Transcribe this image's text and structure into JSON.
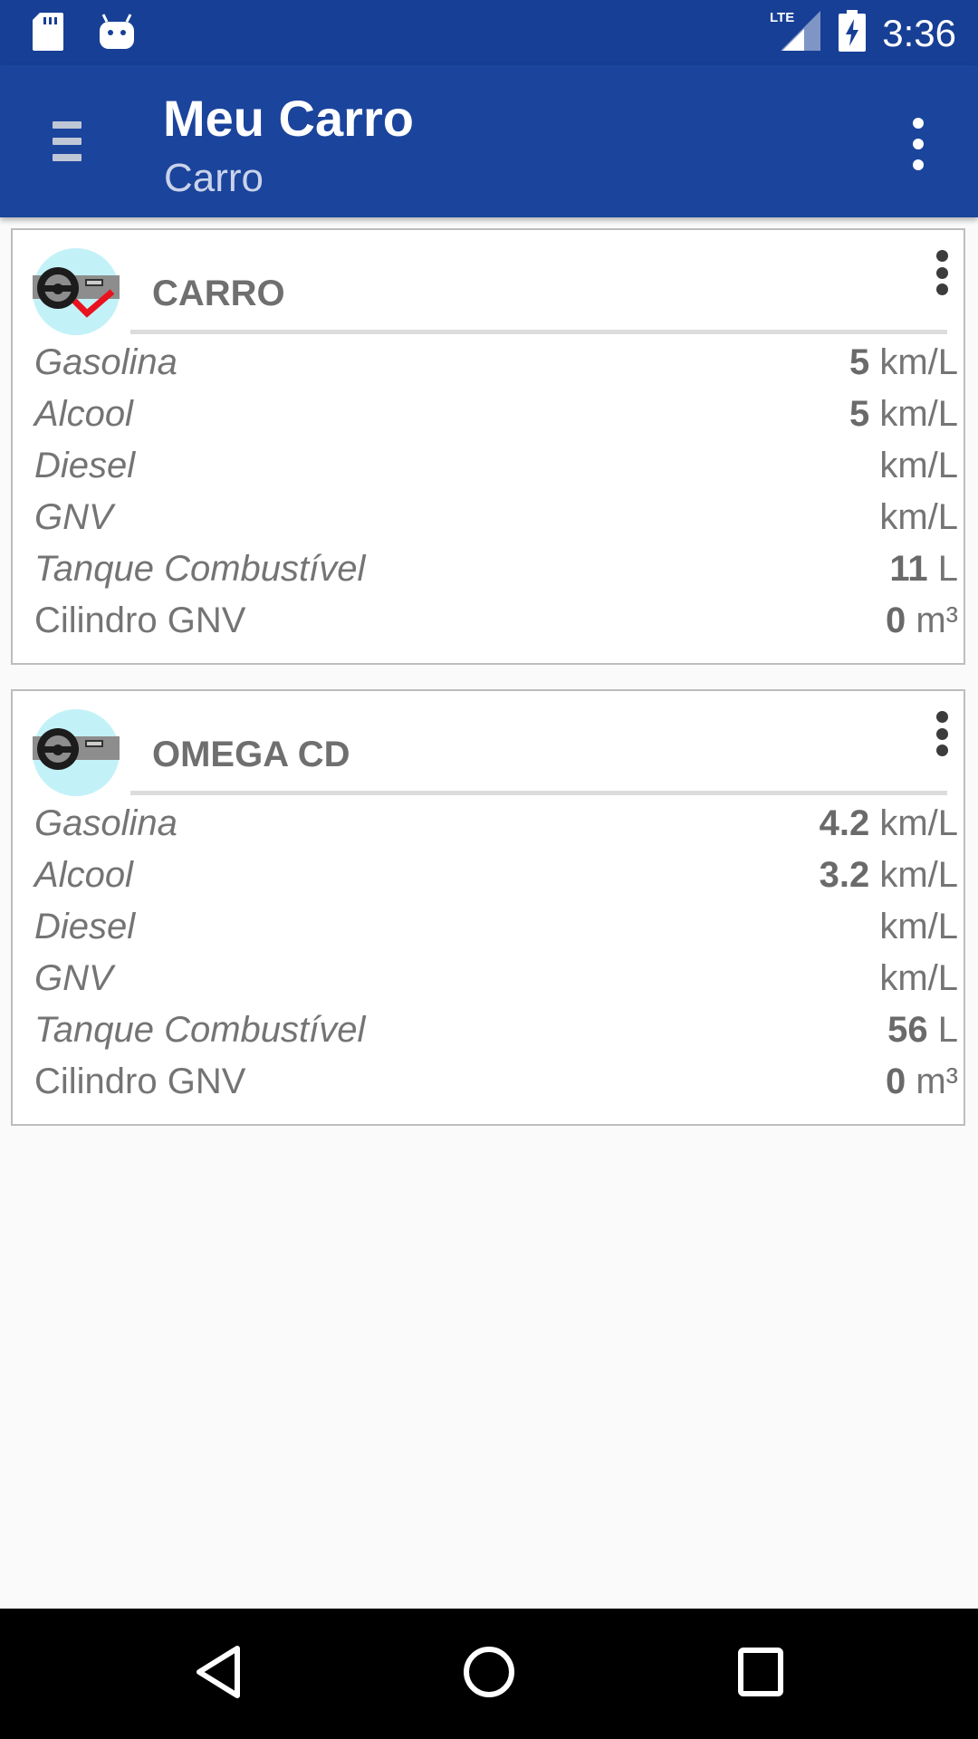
{
  "status_bar": {
    "left_icons": [
      "sd-card-icon",
      "android-icon"
    ],
    "network": "LTE",
    "time": "3:36"
  },
  "app_bar": {
    "title": "Meu Carro",
    "subtitle": "Carro"
  },
  "colors": {
    "primary": "#1b449c",
    "status_bar": "#173f96",
    "check_red": "#e8131f",
    "icon_circle": "#c2f2f8"
  },
  "cars": [
    {
      "name": "CARRO",
      "selected": true,
      "rows": [
        {
          "label": "Gasolina",
          "value": "5",
          "unit": "km/L"
        },
        {
          "label": "Alcool",
          "value": "5",
          "unit": "km/L"
        },
        {
          "label": "Diesel",
          "value": "",
          "unit": "km/L"
        },
        {
          "label": "GNV",
          "value": "",
          "unit": "km/L"
        },
        {
          "label": "Tanque Combustível",
          "value": "11",
          "unit": "L"
        },
        {
          "label": "Cilindro GNV",
          "value": "0",
          "unit": "m³"
        }
      ]
    },
    {
      "name": "OMEGA CD",
      "selected": false,
      "rows": [
        {
          "label": "Gasolina",
          "value": "4.2",
          "unit": "km/L"
        },
        {
          "label": "Alcool",
          "value": "3.2",
          "unit": "km/L"
        },
        {
          "label": "Diesel",
          "value": "",
          "unit": "km/L"
        },
        {
          "label": "GNV",
          "value": "",
          "unit": "km/L"
        },
        {
          "label": "Tanque Combustível",
          "value": "56",
          "unit": "L"
        },
        {
          "label": "Cilindro GNV",
          "value": "0",
          "unit": "m³"
        }
      ]
    }
  ],
  "nav_bar": [
    "back-icon",
    "home-icon",
    "recents-icon"
  ]
}
